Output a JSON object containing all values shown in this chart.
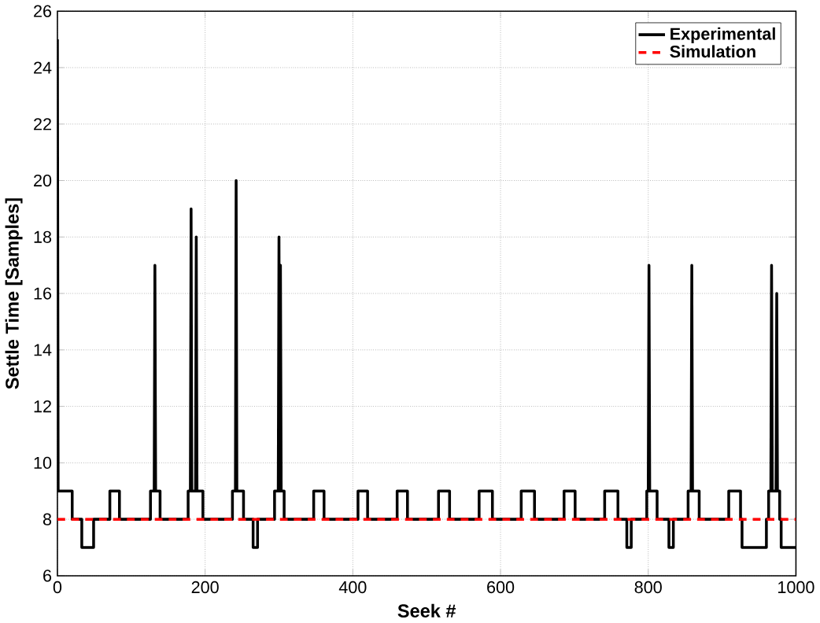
{
  "chart_data": {
    "type": "line",
    "xlabel": "Seek #",
    "ylabel": "Settle Time [Samples]",
    "xlim": [
      0,
      1000
    ],
    "ylim": [
      6,
      26
    ],
    "xticks": [
      0,
      200,
      400,
      600,
      800,
      1000
    ],
    "yticks": [
      6,
      8,
      10,
      12,
      14,
      16,
      18,
      20,
      22,
      24,
      26
    ],
    "grid": true,
    "legend": "top right",
    "series": [
      {
        "name": "Experimental",
        "color": "#000000",
        "line_style": "solid",
        "x": [
          0,
          1,
          20,
          20,
          33,
          33,
          49,
          49,
          71,
          71,
          84,
          84,
          126,
          126,
          131,
          132,
          133,
          139,
          139,
          177,
          177,
          180,
          181,
          182,
          187,
          188,
          189,
          197,
          197,
          237,
          237,
          241,
          242,
          243,
          252,
          252,
          265,
          265,
          271,
          271,
          294,
          294,
          299,
          300,
          301,
          302,
          303,
          307,
          307,
          347,
          347,
          361,
          361,
          407,
          407,
          420,
          420,
          460,
          460,
          474,
          474,
          516,
          516,
          531,
          531,
          571,
          571,
          589,
          589,
          628,
          628,
          646,
          646,
          686,
          686,
          701,
          701,
          741,
          741,
          759,
          759,
          771,
          771,
          777,
          777,
          798,
          798,
          800,
          801,
          802,
          812,
          812,
          828,
          828,
          834,
          834,
          854,
          854,
          858,
          859,
          860,
          869,
          869,
          909,
          909,
          925,
          925,
          927,
          927,
          960,
          960,
          963,
          963,
          966,
          967,
          968,
          973,
          974,
          975,
          978,
          978,
          980,
          980,
          1000
        ],
        "values": [
          25,
          9,
          9,
          8,
          8,
          7,
          7,
          8,
          8,
          9,
          9,
          8,
          8,
          9,
          9,
          17,
          9,
          9,
          8,
          8,
          9,
          9,
          19,
          9,
          9,
          18,
          9,
          9,
          8,
          8,
          9,
          9,
          20,
          9,
          9,
          8,
          8,
          7,
          7,
          8,
          8,
          9,
          9,
          18,
          9,
          17,
          9,
          9,
          8,
          8,
          9,
          9,
          8,
          8,
          9,
          9,
          8,
          8,
          9,
          9,
          8,
          8,
          9,
          9,
          8,
          8,
          9,
          9,
          8,
          8,
          9,
          9,
          8,
          8,
          9,
          9,
          8,
          8,
          9,
          9,
          8,
          8,
          7,
          7,
          8,
          8,
          9,
          9,
          17,
          9,
          9,
          8,
          8,
          7,
          7,
          8,
          8,
          9,
          9,
          17,
          9,
          9,
          8,
          8,
          9,
          9,
          8,
          8,
          7,
          7,
          8,
          8,
          9,
          9,
          17,
          9,
          9,
          16,
          9,
          9,
          8,
          8,
          7,
          7
        ]
      },
      {
        "name": "Simulation",
        "color": "#ff0000",
        "line_style": "dashed",
        "x": [
          0,
          1000
        ],
        "values": [
          8,
          8
        ]
      }
    ]
  }
}
